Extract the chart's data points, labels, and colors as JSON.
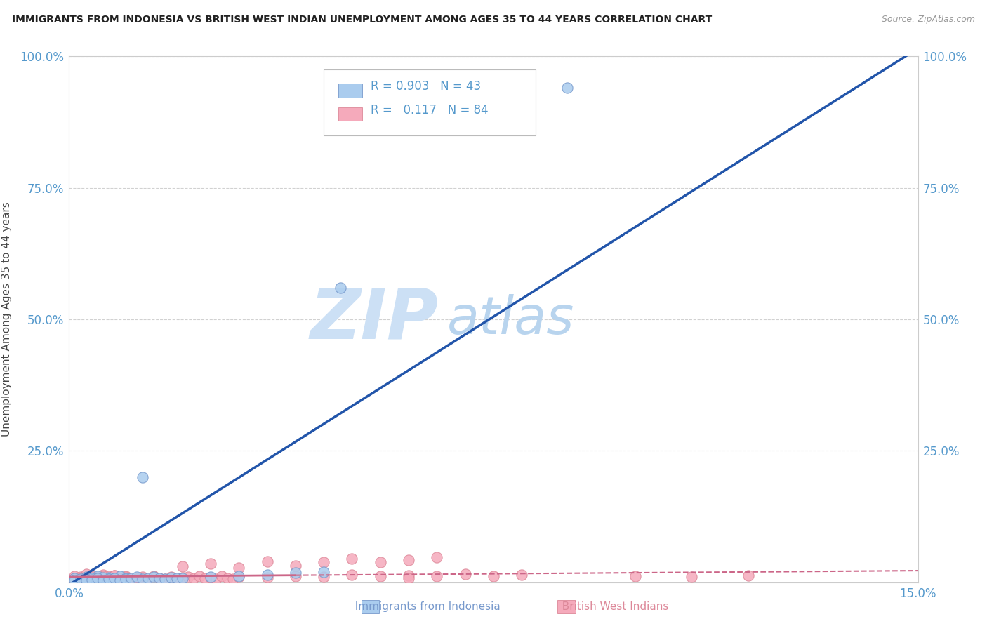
{
  "title": "IMMIGRANTS FROM INDONESIA VS BRITISH WEST INDIAN UNEMPLOYMENT AMONG AGES 35 TO 44 YEARS CORRELATION CHART",
  "source": "Source: ZipAtlas.com",
  "ylabel": "Unemployment Among Ages 35 to 44 years",
  "xlim": [
    0,
    0.15
  ],
  "ylim": [
    0,
    1.0
  ],
  "indonesia_color": "#aaccee",
  "indonesia_edge": "#7799cc",
  "bwi_color": "#f5aabb",
  "bwi_edge": "#dd8899",
  "indonesia_R": 0.903,
  "indonesia_N": 43,
  "bwi_R": 0.117,
  "bwi_N": 84,
  "regression_blue": "#2255aa",
  "regression_pink": "#cc6688",
  "watermark_zip_color": "#cce0f5",
  "watermark_atlas_color": "#b8d4ee",
  "legend_label_indonesia": "Immigrants from Indonesia",
  "legend_label_bwi": "British West Indians",
  "background_color": "#ffffff",
  "grid_color": "#cccccc",
  "title_color": "#222222",
  "axis_label_color": "#444444",
  "tick_color": "#5599cc",
  "source_color": "#999999",
  "indo_x": [
    0.001,
    0.002,
    0.003,
    0.004,
    0.005,
    0.006,
    0.007,
    0.008,
    0.009,
    0.01,
    0.001,
    0.002,
    0.003,
    0.004,
    0.005,
    0.006,
    0.007,
    0.003,
    0.004,
    0.005,
    0.006,
    0.007,
    0.008,
    0.009,
    0.01,
    0.011,
    0.012,
    0.013,
    0.014,
    0.015,
    0.016,
    0.017,
    0.018,
    0.019,
    0.02,
    0.025,
    0.03,
    0.035,
    0.04,
    0.045,
    0.013,
    0.048,
    0.088
  ],
  "indo_y": [
    0.008,
    0.005,
    0.01,
    0.008,
    0.012,
    0.007,
    0.009,
    0.006,
    0.011,
    0.008,
    0.003,
    0.006,
    0.004,
    0.007,
    0.005,
    0.009,
    0.006,
    0.003,
    0.005,
    0.007,
    0.004,
    0.006,
    0.008,
    0.004,
    0.006,
    0.008,
    0.01,
    0.006,
    0.008,
    0.01,
    0.008,
    0.006,
    0.009,
    0.007,
    0.008,
    0.01,
    0.012,
    0.014,
    0.018,
    0.02,
    0.2,
    0.56,
    0.94
  ],
  "bwi_x": [
    0.001,
    0.001,
    0.002,
    0.002,
    0.003,
    0.003,
    0.004,
    0.004,
    0.005,
    0.005,
    0.006,
    0.006,
    0.007,
    0.007,
    0.008,
    0.008,
    0.009,
    0.009,
    0.01,
    0.01,
    0.001,
    0.002,
    0.003,
    0.004,
    0.005,
    0.006,
    0.007,
    0.008,
    0.009,
    0.01,
    0.011,
    0.012,
    0.013,
    0.014,
    0.015,
    0.016,
    0.017,
    0.018,
    0.019,
    0.02,
    0.021,
    0.022,
    0.023,
    0.024,
    0.025,
    0.026,
    0.027,
    0.028,
    0.029,
    0.03,
    0.035,
    0.04,
    0.045,
    0.05,
    0.055,
    0.06,
    0.065,
    0.07,
    0.075,
    0.08,
    0.02,
    0.025,
    0.03,
    0.035,
    0.04,
    0.045,
    0.05,
    0.055,
    0.06,
    0.065,
    0.003,
    0.004,
    0.005,
    0.006,
    0.007,
    0.008,
    0.009,
    0.01,
    0.011,
    0.012,
    0.1,
    0.11,
    0.12,
    0.06
  ],
  "bwi_y": [
    0.012,
    0.006,
    0.01,
    0.005,
    0.015,
    0.008,
    0.012,
    0.006,
    0.01,
    0.004,
    0.014,
    0.007,
    0.011,
    0.005,
    0.013,
    0.006,
    0.009,
    0.004,
    0.012,
    0.007,
    0.003,
    0.008,
    0.004,
    0.009,
    0.005,
    0.011,
    0.006,
    0.013,
    0.007,
    0.01,
    0.008,
    0.006,
    0.01,
    0.007,
    0.012,
    0.008,
    0.006,
    0.01,
    0.007,
    0.009,
    0.01,
    0.008,
    0.011,
    0.007,
    0.009,
    0.006,
    0.011,
    0.008,
    0.006,
    0.01,
    0.009,
    0.012,
    0.01,
    0.014,
    0.011,
    0.013,
    0.012,
    0.015,
    0.012,
    0.014,
    0.03,
    0.035,
    0.028,
    0.04,
    0.032,
    0.038,
    0.045,
    0.038,
    0.042,
    0.048,
    0.004,
    0.006,
    0.005,
    0.008,
    0.006,
    0.004,
    0.007,
    0.005,
    0.008,
    0.006,
    0.012,
    0.01,
    0.013,
    0.008
  ],
  "slope_indo": 6.8,
  "intercept_indo": -0.005,
  "slope_bwi": 0.08,
  "intercept_bwi": 0.01
}
